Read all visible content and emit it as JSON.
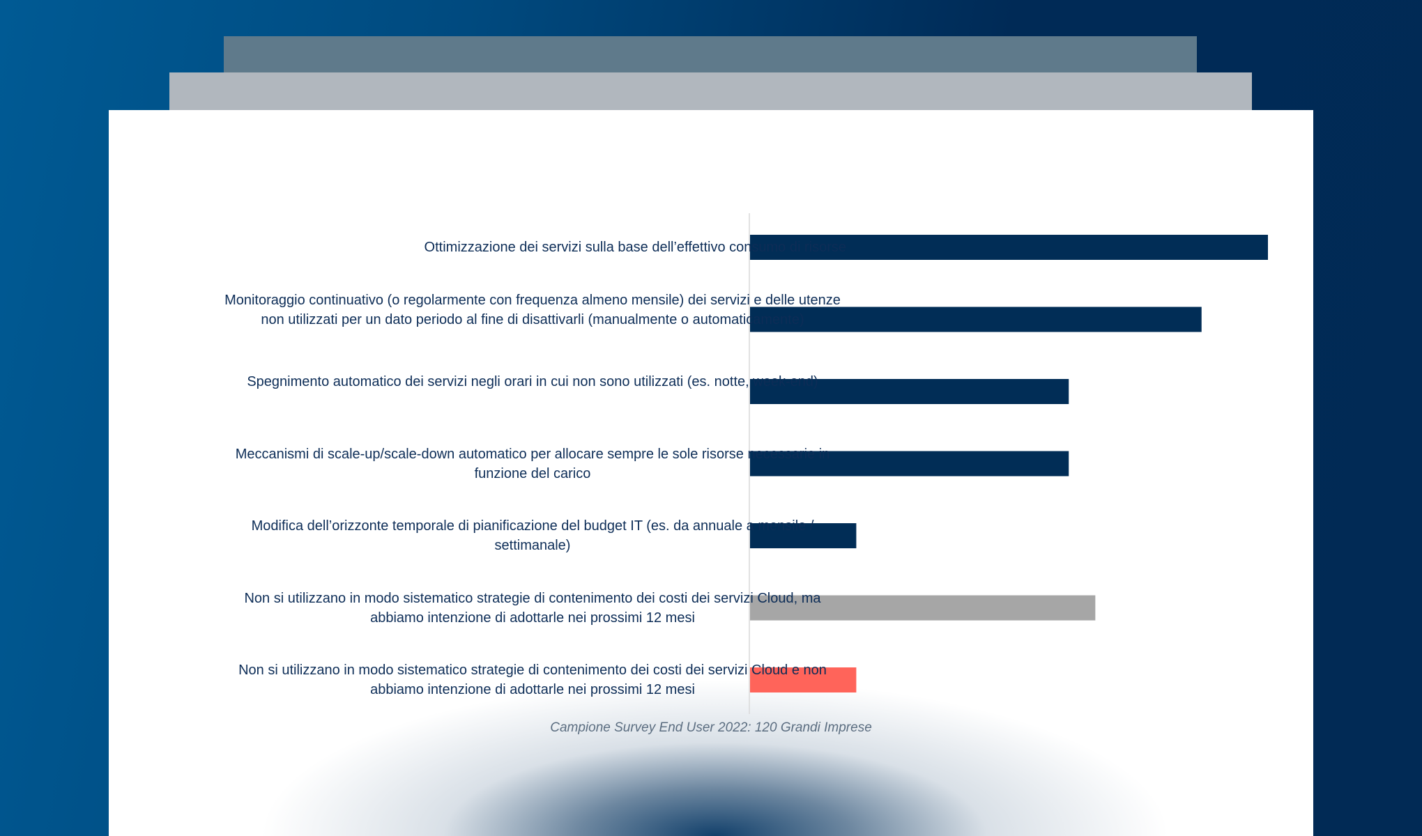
{
  "chart_data": {
    "type": "bar",
    "orientation": "horizontal",
    "categories": [
      "Ottimizzazione dei servizi sulla base dell’effettivo consumo di risorse",
      "Monitoraggio continuativo (o regolarmente con frequenza almeno mensile) dei servizi e delle utenze non utilizzati per un dato periodo al fine di disattivarli (manualmente o automaticamente)",
      "Spegnimento automatico  dei servizi negli orari in cui non sono utilizzati (es. notte, week-end)",
      "Meccanismi di scale-up/scale-down automatico per allocare sempre le sole risorse necessarie in funzione del carico",
      "Modifica dell’orizzonte temporale di pianificazione del budget IT (es. da annuale a mensile / settimanale)",
      "Non si utilizzano in modo sistematico strategie di contenimento dei costi dei servizi Cloud, ma abbiamo intenzione di adottarle nei prossimi 12 mesi",
      "Non si utilizzano in modo sistematico strategie di contenimento dei costi dei servizi Cloud e non abbiamo intenzione di adottarle nei prossimi 12 mesi"
    ],
    "values": [
      39,
      34,
      24,
      24,
      8,
      26,
      8
    ],
    "colors": [
      "#012d56",
      "#012d56",
      "#012d56",
      "#012d56",
      "#012d56",
      "#a6a6a6",
      "#ff645a"
    ],
    "xlim": [
      0,
      40
    ],
    "grid": false,
    "axis_labels_shown": false,
    "caption": "Campione Survey End User 2022: 120 Grandi Imprese"
  }
}
